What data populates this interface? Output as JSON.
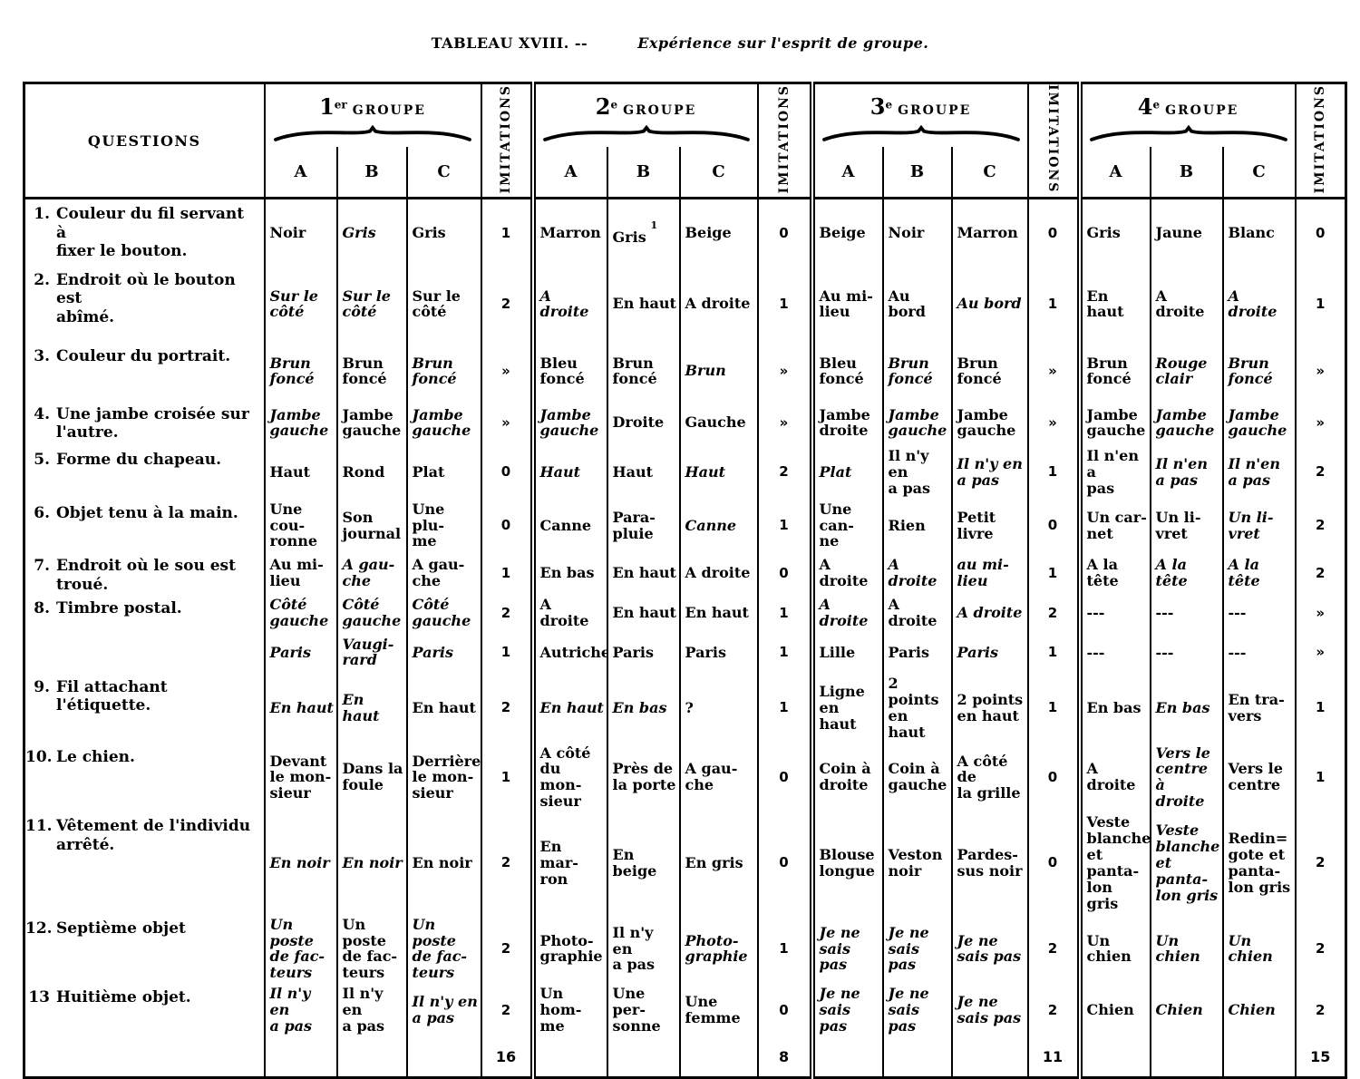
{
  "title": {
    "label": "TABLEAU XVIII. --",
    "subtitle": "Expérience sur l'esprit de groupe."
  },
  "header": {
    "questions_label": "QUESTIONS",
    "imitations_label": "IMITATIONS",
    "subcols": [
      "A",
      "B",
      "C"
    ],
    "groups": [
      {
        "num": "1",
        "ord": "er",
        "word": "GROUPE"
      },
      {
        "num": "2",
        "ord": "e",
        "word": "GROUPE"
      },
      {
        "num": "3",
        "ord": "e",
        "word": "GROUPE"
      },
      {
        "num": "4",
        "ord": "e",
        "word": "GROUPE"
      }
    ]
  },
  "rows": [
    {
      "num": "1.",
      "question": "Couleur du fil servant à\nfixer le bouton.",
      "groups": [
        {
          "a": {
            "t": "Noir",
            "i": false
          },
          "b": {
            "t": "Gris",
            "i": true
          },
          "c": {
            "t": "Gris",
            "i": false
          },
          "imit": "1"
        },
        {
          "a": {
            "t": "Marron",
            "i": false
          },
          "b": {
            "t": "Gris",
            "i": false,
            "sup": "1"
          },
          "c": {
            "t": "Beige",
            "i": false
          },
          "imit": "0"
        },
        {
          "a": {
            "t": "Beige",
            "i": false
          },
          "b": {
            "t": "Noir",
            "i": false
          },
          "c": {
            "t": "Marron",
            "i": false
          },
          "imit": "0"
        },
        {
          "a": {
            "t": "Gris",
            "i": false
          },
          "b": {
            "t": "Jaune",
            "i": false
          },
          "c": {
            "t": "Blanc",
            "i": false
          },
          "imit": "0"
        }
      ]
    },
    {
      "num": "2.",
      "question": "Endroit où le bouton est\nabîmé.",
      "groups": [
        {
          "a": {
            "t": "Sur le\ncôté",
            "i": true
          },
          "b": {
            "t": "Sur le\ncôté",
            "i": true
          },
          "c": {
            "t": "Sur le\ncôté",
            "i": false
          },
          "imit": "2"
        },
        {
          "a": {
            "t": "A droite",
            "i": true
          },
          "b": {
            "t": "En haut",
            "i": false
          },
          "c": {
            "t": "A droite",
            "i": false
          },
          "imit": "1"
        },
        {
          "a": {
            "t": "Au mi-\nlieu",
            "i": false
          },
          "b": {
            "t": "Au bord",
            "i": false
          },
          "c": {
            "t": "Au bord",
            "i": true
          },
          "imit": "1"
        },
        {
          "a": {
            "t": "En haut",
            "i": false
          },
          "b": {
            "t": "A droite",
            "i": false
          },
          "c": {
            "t": "A droite",
            "i": true
          },
          "imit": "1"
        }
      ]
    },
    {
      "num": "3.",
      "question": "Couleur du portrait.",
      "groups": [
        {
          "a": {
            "t": "Brun\nfoncé",
            "i": true
          },
          "b": {
            "t": "Brun\nfoncé",
            "i": false
          },
          "c": {
            "t": "Brun\nfoncé",
            "i": true
          },
          "imit": "»"
        },
        {
          "a": {
            "t": "Bleu\nfoncé",
            "i": false
          },
          "b": {
            "t": "Brun\nfoncé",
            "i": false
          },
          "c": {
            "t": "Brun",
            "i": true
          },
          "imit": "»"
        },
        {
          "a": {
            "t": "Bleu\nfoncé",
            "i": false
          },
          "b": {
            "t": "Brun\nfoncé",
            "i": true
          },
          "c": {
            "t": "Brun\nfoncé",
            "i": false
          },
          "imit": "»"
        },
        {
          "a": {
            "t": "Brun\nfoncé",
            "i": false
          },
          "b": {
            "t": "Rouge\nclair",
            "i": true
          },
          "c": {
            "t": "Brun\nfoncé",
            "i": true
          },
          "imit": "»"
        }
      ]
    },
    {
      "num": "4.",
      "question": "Une jambe croisée sur\nl'autre.",
      "groups": [
        {
          "a": {
            "t": "Jambe\ngauche",
            "i": true
          },
          "b": {
            "t": "Jambe\ngauche",
            "i": false
          },
          "c": {
            "t": "Jambe\ngauche",
            "i": true
          },
          "imit": "»"
        },
        {
          "a": {
            "t": "Jambe\ngauche",
            "i": true
          },
          "b": {
            "t": "Droite",
            "i": false
          },
          "c": {
            "t": "Gauche",
            "i": false
          },
          "imit": "»"
        },
        {
          "a": {
            "t": "Jambe\ndroite",
            "i": false
          },
          "b": {
            "t": "Jambe\ngauche",
            "i": true
          },
          "c": {
            "t": "Jambe\ngauche",
            "i": false
          },
          "imit": "»"
        },
        {
          "a": {
            "t": "Jambe\ngauche",
            "i": false
          },
          "b": {
            "t": "Jambe\ngauche",
            "i": true
          },
          "c": {
            "t": "Jambe\ngauche",
            "i": true
          },
          "imit": "»"
        }
      ]
    },
    {
      "num": "5.",
      "question": "Forme du chapeau.",
      "groups": [
        {
          "a": {
            "t": "Haut",
            "i": false
          },
          "b": {
            "t": "Rond",
            "i": false
          },
          "c": {
            "t": "Plat",
            "i": false
          },
          "imit": "0"
        },
        {
          "a": {
            "t": "Haut",
            "i": true
          },
          "b": {
            "t": "Haut",
            "i": false
          },
          "c": {
            "t": "Haut",
            "i": true
          },
          "imit": "2"
        },
        {
          "a": {
            "t": "Plat",
            "i": true
          },
          "b": {
            "t": "Il n'y en\na pas",
            "i": false
          },
          "c": {
            "t": "Il n'y en\na pas",
            "i": true
          },
          "imit": "1"
        },
        {
          "a": {
            "t": "Il n'en a\npas",
            "i": false
          },
          "b": {
            "t": "Il n'en\na pas",
            "i": true
          },
          "c": {
            "t": "Il n'en\na pas",
            "i": true
          },
          "imit": "2"
        }
      ]
    },
    {
      "num": "6.",
      "question": "Objet tenu à la main.",
      "groups": [
        {
          "a": {
            "t": "Une cou-\nronne",
            "i": false
          },
          "b": {
            "t": "Son\njournal",
            "i": false
          },
          "c": {
            "t": "Une plu-\nme",
            "i": false
          },
          "imit": "0"
        },
        {
          "a": {
            "t": "Canne",
            "i": false
          },
          "b": {
            "t": "Para-\npluie",
            "i": false
          },
          "c": {
            "t": "Canne",
            "i": true
          },
          "imit": "1"
        },
        {
          "a": {
            "t": "Une can-\nne",
            "i": false
          },
          "b": {
            "t": "Rien",
            "i": false
          },
          "c": {
            "t": "Petit\nlivre",
            "i": false
          },
          "imit": "0"
        },
        {
          "a": {
            "t": "Un car-\nnet",
            "i": false
          },
          "b": {
            "t": "Un li-\nvret",
            "i": false
          },
          "c": {
            "t": "Un li-\nvret",
            "i": true
          },
          "imit": "2"
        }
      ]
    },
    {
      "num": "7.",
      "question": "Endroit où le sou est\ntroué.",
      "groups": [
        {
          "a": {
            "t": "Au mi-\nlieu",
            "i": false
          },
          "b": {
            "t": "A gau-\nche",
            "i": true
          },
          "c": {
            "t": "A gau-\nche",
            "i": false
          },
          "imit": "1"
        },
        {
          "a": {
            "t": "En bas",
            "i": false
          },
          "b": {
            "t": "En haut",
            "i": false
          },
          "c": {
            "t": "A droite",
            "i": false
          },
          "imit": "0"
        },
        {
          "a": {
            "t": "A droite",
            "i": false
          },
          "b": {
            "t": "A droite",
            "i": true
          },
          "c": {
            "t": "au mi-\nlieu",
            "i": true
          },
          "imit": "1"
        },
        {
          "a": {
            "t": "A la tête",
            "i": false
          },
          "b": {
            "t": "A la tête",
            "i": true
          },
          "c": {
            "t": "A la tête",
            "i": true
          },
          "imit": "2"
        }
      ]
    },
    {
      "num": "8.",
      "question": "Timbre postal.",
      "groups": [
        {
          "a": {
            "t": "Côté\ngauche",
            "i": true
          },
          "b": {
            "t": "Côté\ngauche",
            "i": true
          },
          "c": {
            "t": "Côté\ngauche",
            "i": true
          },
          "imit": "2"
        },
        {
          "a": {
            "t": "A droite",
            "i": false
          },
          "b": {
            "t": "En haut",
            "i": false
          },
          "c": {
            "t": "En haut",
            "i": false
          },
          "imit": "1"
        },
        {
          "a": {
            "t": "A droite",
            "i": true
          },
          "b": {
            "t": "A droite",
            "i": false
          },
          "c": {
            "t": "A droite",
            "i": true
          },
          "imit": "2"
        },
        {
          "a": {
            "t": "---",
            "i": false
          },
          "b": {
            "t": "---",
            "i": false
          },
          "c": {
            "t": "---",
            "i": false
          },
          "imit": "»"
        }
      ]
    },
    {
      "num": "",
      "question": "",
      "groups": [
        {
          "a": {
            "t": "Paris",
            "i": true
          },
          "b": {
            "t": "Vaugi-\nrard",
            "i": true
          },
          "c": {
            "t": "Paris",
            "i": true
          },
          "imit": "1"
        },
        {
          "a": {
            "t": "Autriche",
            "i": false
          },
          "b": {
            "t": "Paris",
            "i": false
          },
          "c": {
            "t": "Paris",
            "i": false
          },
          "imit": "1"
        },
        {
          "a": {
            "t": "Lille",
            "i": false
          },
          "b": {
            "t": "Paris",
            "i": false
          },
          "c": {
            "t": "Paris",
            "i": true
          },
          "imit": "1"
        },
        {
          "a": {
            "t": "---",
            "i": false
          },
          "b": {
            "t": "---",
            "i": false
          },
          "c": {
            "t": "---",
            "i": false
          },
          "imit": "»"
        }
      ]
    },
    {
      "num": "9.",
      "question": "Fil attachant l'étiquette.",
      "groups": [
        {
          "a": {
            "t": "En haut",
            "i": true
          },
          "b": {
            "t": "En haut",
            "i": true
          },
          "c": {
            "t": "En haut",
            "i": false
          },
          "imit": "2"
        },
        {
          "a": {
            "t": "En haut",
            "i": true
          },
          "b": {
            "t": "En bas",
            "i": true
          },
          "c": {
            "t": "?",
            "i": false
          },
          "imit": "1"
        },
        {
          "a": {
            "t": "Ligne\nen haut",
            "i": false
          },
          "b": {
            "t": "2 points\nen haut",
            "i": false
          },
          "c": {
            "t": "2 points\nen haut",
            "i": false
          },
          "imit": "1"
        },
        {
          "a": {
            "t": "En bas",
            "i": false
          },
          "b": {
            "t": "En bas",
            "i": true
          },
          "c": {
            "t": "En tra-\nvers",
            "i": false
          },
          "imit": "1"
        }
      ]
    },
    {
      "num": "10.",
      "question": "Le chien.",
      "groups": [
        {
          "a": {
            "t": "Devant\nle mon-\nsieur",
            "i": false
          },
          "b": {
            "t": "Dans la\nfoule",
            "i": false
          },
          "c": {
            "t": "Derrière\nle mon-\nsieur",
            "i": false
          },
          "imit": "1"
        },
        {
          "a": {
            "t": "A côté\ndu mon-\nsieur",
            "i": false
          },
          "b": {
            "t": "Près de\nla porte",
            "i": false
          },
          "c": {
            "t": "A gau-\nche",
            "i": false
          },
          "imit": "0"
        },
        {
          "a": {
            "t": "Coin à\ndroite",
            "i": false
          },
          "b": {
            "t": "Coin à\ngauche",
            "i": false
          },
          "c": {
            "t": "A côté de\nla grille",
            "i": false
          },
          "imit": "0"
        },
        {
          "a": {
            "t": "A droite",
            "i": false
          },
          "b": {
            "t": "Vers le\ncentre à\ndroite",
            "i": true
          },
          "c": {
            "t": "Vers le\ncentre",
            "i": false
          },
          "imit": "1"
        }
      ]
    },
    {
      "num": "11.",
      "question": "Vêtement de l'individu\narrêté.",
      "groups": [
        {
          "a": {
            "t": "En noir",
            "i": true
          },
          "b": {
            "t": "En noir",
            "i": true
          },
          "c": {
            "t": "En noir",
            "i": false
          },
          "imit": "2"
        },
        {
          "a": {
            "t": "En mar-\nron",
            "i": false
          },
          "b": {
            "t": "En\nbeige",
            "i": false
          },
          "c": {
            "t": "En gris",
            "i": false
          },
          "imit": "0"
        },
        {
          "a": {
            "t": "Blouse\nlongue",
            "i": false
          },
          "b": {
            "t": "Veston\nnoir",
            "i": false
          },
          "c": {
            "t": "Pardes-\nsus noir",
            "i": false
          },
          "imit": "0"
        },
        {
          "a": {
            "t": "Veste\nblanche\net panta-\nlon gris",
            "i": false
          },
          "b": {
            "t": "Veste\nblanche\net panta-\nlon gris",
            "i": true
          },
          "c": {
            "t": "Redin=\ngote et\npanta-\nlon gris",
            "i": false
          },
          "imit": "2"
        }
      ]
    },
    {
      "num": "12.",
      "question": "Septième objet",
      "groups": [
        {
          "a": {
            "t": "Un poste\nde fac-\nteurs",
            "i": true
          },
          "b": {
            "t": "Un poste\nde fac-\nteurs",
            "i": false
          },
          "c": {
            "t": "Un poste\nde fac-\nteurs",
            "i": true
          },
          "imit": "2"
        },
        {
          "a": {
            "t": "Photo-\ngraphie",
            "i": false
          },
          "b": {
            "t": "Il n'y en\na pas",
            "i": false
          },
          "c": {
            "t": "Photo-\ngraphie",
            "i": true
          },
          "imit": "1"
        },
        {
          "a": {
            "t": "Je ne\nsais pas",
            "i": true
          },
          "b": {
            "t": "Je ne\nsais pas",
            "i": true
          },
          "c": {
            "t": "Je ne\nsais pas",
            "i": true
          },
          "imit": "2"
        },
        {
          "a": {
            "t": "Un\nchien",
            "i": false
          },
          "b": {
            "t": "Un\nchien",
            "i": true
          },
          "c": {
            "t": "Un\nchien",
            "i": true
          },
          "imit": "2"
        }
      ]
    },
    {
      "num": "13",
      "question": "Huitième objet.",
      "groups": [
        {
          "a": {
            "t": "Il n'y en\na pas",
            "i": true
          },
          "b": {
            "t": "Il n'y en\na pas",
            "i": false
          },
          "c": {
            "t": "Il n'y en\na pas",
            "i": true
          },
          "imit": "2"
        },
        {
          "a": {
            "t": "Un hom-\nme",
            "i": false
          },
          "b": {
            "t": "Une per-\nsonne",
            "i": false
          },
          "c": {
            "t": "Une\nfemme",
            "i": false
          },
          "imit": "0"
        },
        {
          "a": {
            "t": "Je ne\nsais pas",
            "i": true
          },
          "b": {
            "t": "Je ne\nsais pas",
            "i": true
          },
          "c": {
            "t": "Je ne\nsais pas",
            "i": true
          },
          "imit": "2"
        },
        {
          "a": {
            "t": "Chien",
            "i": false
          },
          "b": {
            "t": "Chien",
            "i": true
          },
          "c": {
            "t": "Chien",
            "i": true
          },
          "imit": "2"
        }
      ]
    }
  ],
  "totals": [
    "16",
    "8",
    "11",
    "15"
  ]
}
